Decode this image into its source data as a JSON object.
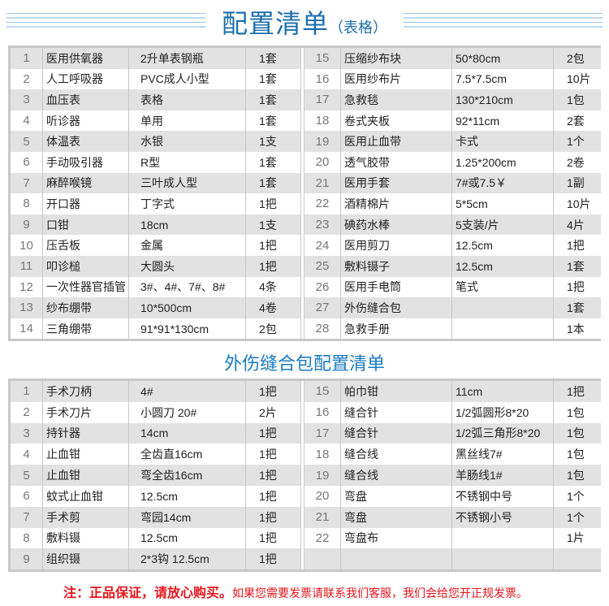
{
  "header": {
    "title": "配置清单",
    "subtitle": "（表格）"
  },
  "table1": {
    "left": [
      [
        "1",
        "医用供氧器",
        "2升单表钢瓶",
        "1套"
      ],
      [
        "2",
        "人工呼吸器",
        "PVC成人小型",
        "1套"
      ],
      [
        "3",
        "血压表",
        "表格",
        "1套"
      ],
      [
        "4",
        "听诊器",
        "单用",
        "1套"
      ],
      [
        "5",
        "体温表",
        "水银",
        "1支"
      ],
      [
        "6",
        "手动吸引器",
        "R型",
        "1套"
      ],
      [
        "7",
        "麻醉喉镜",
        "三叶成人型",
        "1套"
      ],
      [
        "8",
        "开口器",
        "丁字式",
        "1把"
      ],
      [
        "9",
        "口钳",
        "18cm",
        "1支"
      ],
      [
        "10",
        "压舌板",
        "金属",
        "1把"
      ],
      [
        "11",
        "叩诊槌",
        "大圆头",
        "1把"
      ],
      [
        "12",
        "一次性器官插管",
        "3#、4#、7#、8#",
        "4条"
      ],
      [
        "13",
        "纱布绷带",
        "10*500cm",
        "4卷"
      ],
      [
        "14",
        "三角绷带",
        "91*91*130cm",
        "2包"
      ]
    ],
    "right": [
      [
        "15",
        "压缩纱布块",
        "50*80cm",
        "2包"
      ],
      [
        "16",
        "医用纱布片",
        "7.5*7.5cm",
        "10片"
      ],
      [
        "17",
        "急救毯",
        "130*210cm",
        "1包"
      ],
      [
        "18",
        "卷式夹板",
        "92*11cm",
        "2套"
      ],
      [
        "19",
        "医用止血带",
        "卡式",
        "1个"
      ],
      [
        "20",
        "透气胶带",
        "1.25*200cm",
        "2卷"
      ],
      [
        "21",
        "医用手套",
        "7#或7.5￥",
        "1副"
      ],
      [
        "22",
        "酒精棉片",
        "5*5cm",
        "10片"
      ],
      [
        "23",
        "碘药水棒",
        "5支装/片",
        "4片"
      ],
      [
        "24",
        "医用剪刀",
        "12.5cm",
        "1把"
      ],
      [
        "25",
        "敷料镊子",
        "12.5cm",
        "1套"
      ],
      [
        "26",
        "医用手电筒",
        "笔式",
        "1把"
      ],
      [
        "27",
        "外伤缝合包",
        "",
        "1套"
      ],
      [
        "28",
        "急救手册",
        "",
        "1本"
      ]
    ]
  },
  "section2": {
    "title": "外伤缝合包配置清单"
  },
  "table2": {
    "left": [
      [
        "1",
        "手术刀柄",
        "4#",
        "1把"
      ],
      [
        "2",
        "手术刀片",
        "小圆刀 20#",
        "2片"
      ],
      [
        "3",
        "持针器",
        "14cm",
        "1把"
      ],
      [
        "4",
        "止血钳",
        "全齿直16cm",
        "1把"
      ],
      [
        "5",
        "止血钳",
        "弯全齿16cm",
        "1把"
      ],
      [
        "6",
        "蚊式止血钳",
        "12.5cm",
        "1把"
      ],
      [
        "7",
        "手术剪",
        "弯园14cm",
        "1把"
      ],
      [
        "8",
        "敷料镊",
        "12.5cm",
        "1把"
      ],
      [
        "9",
        "组织镊",
        "2*3钩 12.5cm",
        "1把"
      ]
    ],
    "right": [
      [
        "15",
        "帕巾钳",
        "11cm",
        "1把"
      ],
      [
        "16",
        "缝合针",
        "1/2弧圆形8*20",
        "1包"
      ],
      [
        "17",
        "缝合针",
        "1/2弧三角形8*20",
        "1包"
      ],
      [
        "18",
        "缝合线",
        "黑丝线7#",
        "1包"
      ],
      [
        "19",
        "缝合线",
        "羊肠线1#",
        "1包"
      ],
      [
        "20",
        "弯盘",
        "不锈钢中号",
        "1个"
      ],
      [
        "21",
        "弯盘",
        "不锈钢小号",
        "1个"
      ],
      [
        "22",
        "弯盘布",
        "",
        "1片"
      ],
      [
        "",
        "",
        "",
        ""
      ]
    ]
  },
  "footer": {
    "note_bold": "注：正品保证，请放心购买。",
    "note": "如果您需要发票请联系我们客服，我们会给您开正规发票。"
  },
  "colors": {
    "title": "#1a6fae",
    "note": "#e8141b",
    "row_alt": "#e2e2e2"
  }
}
